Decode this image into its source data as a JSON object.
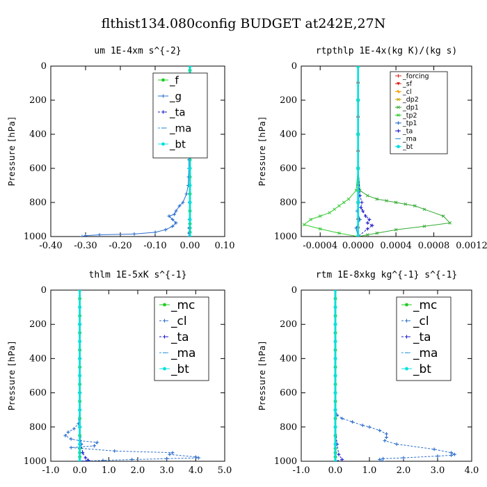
{
  "figure_title": "flthist134.080config  BUDGET at242E,27N",
  "colors": {
    "forcing": "#e0201b",
    "sf": "#e0201b",
    "cl": "#ff9900",
    "dp2": "#c8a800",
    "dp1": "#33aa33",
    "tp2": "#33cc33",
    "tp1": "#2a6dcc",
    "ta": "#1a1acc",
    "ma": "#3399dd",
    "bt": "#00e0e0",
    "mc": "#22cc22",
    "f": "#22cc22",
    "g": "#2a6dcc"
  },
  "chart_data": [
    {
      "type": "line",
      "title": "um   1E-4xm  s^{-2}",
      "ylabel": "Pressure [hPa]",
      "xlim": [
        -0.4,
        0.1
      ],
      "ylim": [
        1000,
        0
      ],
      "xticks": [
        "-0.40",
        "-0.30",
        "-0.20",
        "-0.10",
        "0.00",
        "0.10"
      ],
      "xtick_values": [
        -0.4,
        -0.3,
        -0.2,
        -0.1,
        0.0,
        0.1
      ],
      "yticks": [
        "0",
        "200",
        "400",
        "600",
        "800",
        "1000"
      ],
      "ytick_values": [
        0,
        200,
        400,
        600,
        800,
        1000
      ],
      "legend": {
        "position": "top-right",
        "entries": [
          "_f",
          "_g",
          "_ta",
          "_ma",
          "_bt"
        ]
      },
      "series": [
        {
          "name": "_f",
          "color": "#22cc22",
          "marker": "o",
          "dashed": false,
          "x": [
            0,
            0,
            0,
            0,
            0,
            0,
            0,
            0,
            0,
            0,
            0,
            0,
            0,
            0,
            0,
            0,
            0,
            0,
            0,
            0,
            0,
            0,
            0,
            0
          ],
          "y": [
            0,
            25,
            50,
            100,
            150,
            200,
            250,
            300,
            350,
            400,
            450,
            500,
            550,
            600,
            650,
            700,
            750,
            800,
            850,
            900,
            925,
            950,
            975,
            1000
          ]
        },
        {
          "name": "_g",
          "color": "#2a6dcc",
          "marker": "+",
          "dashed": false,
          "x": [
            -0.003,
            -0.002,
            -0.002,
            -0.003,
            -0.004,
            -0.003,
            -0.003,
            -0.002,
            -0.002,
            -0.002,
            -0.003,
            -0.003,
            -0.004,
            -0.005,
            -0.01,
            -0.02,
            -0.03,
            -0.04,
            -0.045,
            -0.06,
            -0.05,
            -0.04,
            -0.05,
            -0.07,
            -0.1,
            -0.16,
            -0.26,
            -0.3,
            -0.31
          ],
          "y": [
            100,
            150,
            175,
            200,
            250,
            300,
            350,
            400,
            450,
            500,
            550,
            600,
            650,
            700,
            750,
            800,
            820,
            850,
            870,
            880,
            900,
            920,
            940,
            960,
            975,
            985,
            990,
            995,
            1000
          ]
        },
        {
          "name": "_ta",
          "color": "#1a1acc",
          "marker": "+",
          "dashed": true,
          "x": [
            0,
            0,
            0,
            0,
            -0.001,
            -0.001,
            -0.002,
            -0.002,
            -0.003
          ],
          "y": [
            0,
            200,
            400,
            600,
            800,
            900,
            950,
            980,
            1000
          ]
        },
        {
          "name": "_ma",
          "color": "#3399dd",
          "marker": "-",
          "dashed": true,
          "x": [
            0,
            0,
            0,
            0,
            0,
            0,
            0
          ],
          "y": [
            0,
            200,
            400,
            600,
            800,
            900,
            1000
          ]
        },
        {
          "name": "_bt",
          "color": "#00e0e0",
          "marker": "o",
          "dashed": false,
          "x": [
            0,
            0,
            0,
            0,
            0,
            0,
            0,
            0,
            0,
            0,
            0
          ],
          "y": [
            0,
            100,
            200,
            300,
            400,
            500,
            600,
            700,
            800,
            900,
            1000
          ]
        }
      ]
    },
    {
      "type": "line",
      "title": "rtpthlp   1E-4x(kg K)/(kg s)",
      "ylabel": "Pressure [hPa]",
      "xlim": [
        -0.0006,
        0.0012
      ],
      "ylim": [
        1000,
        0
      ],
      "xticks": [
        "-0.0004",
        "0.0000",
        "0.0004",
        "0.0008",
        "0.0012"
      ],
      "xtick_values": [
        -0.0004,
        0.0,
        0.0004,
        0.0008,
        0.0012
      ],
      "yticks": [
        "0",
        "200",
        "400",
        "600",
        "800",
        "1000"
      ],
      "ytick_values": [
        0,
        200,
        400,
        600,
        800,
        1000
      ],
      "legend": {
        "position": "top-right",
        "entries": [
          "_forcing",
          "_sf",
          "_cl",
          "_dp2",
          "_dp1",
          "_tp2",
          "_tp1",
          "_ta",
          "_ma",
          "_bt"
        ]
      },
      "series": [
        {
          "name": "_forcing",
          "color": "#e0201b",
          "marker": "+",
          "dashed": false,
          "x": [
            0,
            0,
            0,
            0,
            0,
            0,
            0,
            0,
            0,
            0,
            0,
            0
          ],
          "y": [
            0,
            100,
            200,
            300,
            400,
            500,
            600,
            700,
            800,
            900,
            950,
            1000
          ]
        },
        {
          "name": "_sf",
          "color": "#e0201b",
          "marker": "v",
          "dashed": false,
          "x": [
            0,
            0,
            0,
            0,
            0,
            0,
            0,
            0,
            0,
            0,
            0,
            0
          ],
          "y": [
            0,
            100,
            200,
            300,
            400,
            500,
            600,
            700,
            800,
            900,
            950,
            1000
          ]
        },
        {
          "name": "_cl",
          "color": "#ff9900",
          "marker": "*",
          "dashed": false,
          "x": [
            0,
            0,
            0,
            0,
            0,
            0
          ],
          "y": [
            0,
            200,
            400,
            600,
            800,
            1000
          ]
        },
        {
          "name": "_dp2",
          "color": "#c8a800",
          "marker": "x",
          "dashed": false,
          "x": [
            0,
            0,
            0,
            0,
            0,
            0
          ],
          "y": [
            0,
            200,
            400,
            600,
            800,
            1000
          ]
        },
        {
          "name": "_dp1",
          "color": "#33aa33",
          "marker": "x",
          "dashed": false,
          "x": [
            0,
            0,
            0,
            0,
            2e-05,
            0.0001,
            0.0002,
            0.0003,
            0.0004,
            0.0005,
            0.0006,
            0.0007,
            0.0009,
            0.00097,
            0.0007,
            0.0004,
            0.0002,
            0.0001,
            0
          ],
          "y": [
            0,
            200,
            400,
            600,
            730,
            760,
            780,
            790,
            800,
            810,
            820,
            840,
            880,
            920,
            940,
            960,
            980,
            990,
            1000
          ]
        },
        {
          "name": "_tp2",
          "color": "#33cc33",
          "marker": "x",
          "dashed": false,
          "x": [
            0,
            0,
            0,
            0,
            -2e-05,
            -0.0001,
            -0.00015,
            -0.0002,
            -0.00025,
            -0.0003,
            -0.0004,
            -0.0005,
            -0.00057,
            -0.0004,
            -0.0002,
            0
          ],
          "y": [
            0,
            200,
            400,
            600,
            730,
            780,
            800,
            820,
            840,
            860,
            880,
            900,
            930,
            955,
            980,
            1000
          ]
        },
        {
          "name": "_tp1",
          "color": "#2a6dcc",
          "marker": "+",
          "dashed": false,
          "x": [
            0,
            0,
            0,
            0,
            1e-05,
            -1e-05,
            2e-05,
            -2e-05,
            0
          ],
          "y": [
            0,
            200,
            400,
            600,
            800,
            850,
            900,
            950,
            1000
          ]
        },
        {
          "name": "_ta",
          "color": "#1a1acc",
          "marker": "+",
          "dashed": true,
          "x": [
            0,
            0,
            0,
            0,
            2e-05,
            4e-05,
            3e-05,
            5e-05,
            8e-05,
            0.00012,
            0.0001,
            0.00015,
            0.0001,
            0
          ],
          "y": [
            0,
            200,
            400,
            600,
            760,
            800,
            830,
            850,
            880,
            900,
            920,
            935,
            955,
            1000
          ]
        },
        {
          "name": "_ma",
          "color": "#3399dd",
          "marker": "-",
          "dashed": true,
          "x": [
            0,
            0,
            0,
            0,
            0,
            0
          ],
          "y": [
            0,
            200,
            400,
            600,
            800,
            1000
          ]
        },
        {
          "name": "_bt",
          "color": "#00e0e0",
          "marker": "o",
          "dashed": false,
          "x": [
            0,
            0,
            0,
            0,
            0,
            0
          ],
          "y": [
            0,
            200,
            400,
            600,
            800,
            1000
          ]
        }
      ]
    },
    {
      "type": "line",
      "title": "thlm   1E-5xK  s^{-1}",
      "ylabel": "Pressure [hPa]",
      "xlim": [
        -1.0,
        5.0
      ],
      "ylim": [
        1000,
        0
      ],
      "xticks": [
        "-1.0",
        "0.0",
        "1.0",
        "2.0",
        "3.0",
        "4.0",
        "5.0"
      ],
      "xtick_values": [
        -1.0,
        0.0,
        1.0,
        2.0,
        3.0,
        4.0,
        5.0
      ],
      "yticks": [
        "0",
        "200",
        "400",
        "600",
        "800",
        "1000"
      ],
      "ytick_values": [
        0,
        200,
        400,
        600,
        800,
        1000
      ],
      "legend": {
        "position": "top-right",
        "entries": [
          "_mc",
          "_cl",
          "_ta",
          "_ma",
          "_bt"
        ]
      },
      "series": [
        {
          "name": "_mc",
          "color": "#22cc22",
          "marker": "o",
          "dashed": false,
          "x": [
            0,
            0,
            0,
            0,
            0,
            0,
            0,
            0,
            0,
            0,
            0,
            0,
            0,
            0,
            0,
            0,
            0,
            0,
            0,
            0,
            0,
            0,
            0
          ],
          "y": [
            0,
            50,
            100,
            150,
            200,
            250,
            300,
            350,
            400,
            450,
            500,
            550,
            600,
            650,
            700,
            750,
            800,
            850,
            900,
            925,
            950,
            975,
            1000
          ]
        },
        {
          "name": "_cl",
          "color": "#2a6dcc",
          "marker": "+",
          "dashed": true,
          "x": [
            0,
            0,
            0,
            0,
            0,
            -0.05,
            -0.2,
            -0.4,
            -0.5,
            -0.3,
            0.0,
            0.6,
            0.5,
            -0.3,
            1.2,
            3.2,
            3.1,
            4.0,
            4.1,
            3.0,
            1.8,
            0.8,
            0.0
          ],
          "y": [
            0,
            200,
            400,
            600,
            700,
            780,
            810,
            830,
            850,
            870,
            880,
            890,
            910,
            920,
            940,
            950,
            960,
            975,
            980,
            985,
            990,
            995,
            1000
          ]
        },
        {
          "name": "_ta",
          "color": "#1a1acc",
          "marker": "+",
          "dashed": true,
          "x": [
            0,
            0,
            0,
            0,
            0,
            0.05,
            0.1,
            0.2,
            0.3,
            0
          ],
          "y": [
            0,
            200,
            400,
            600,
            800,
            900,
            950,
            980,
            995,
            1000
          ]
        },
        {
          "name": "_ma",
          "color": "#3399dd",
          "marker": "-",
          "dashed": true,
          "x": [
            0,
            0,
            0,
            0,
            0,
            0
          ],
          "y": [
            0,
            200,
            400,
            600,
            800,
            1000
          ]
        },
        {
          "name": "_bt",
          "color": "#00e0e0",
          "marker": "o",
          "dashed": false,
          "x": [
            0,
            0,
            0,
            0,
            0,
            0,
            0,
            0,
            0,
            0,
            0
          ],
          "y": [
            0,
            100,
            200,
            300,
            400,
            500,
            600,
            700,
            800,
            900,
            1000
          ]
        }
      ]
    },
    {
      "type": "line",
      "title": "rtm   1E-8xkg  kg^{-1}  s^{-1}",
      "ylabel": "Pressure [hPa]",
      "xlim": [
        -1.0,
        4.0
      ],
      "ylim": [
        1000,
        0
      ],
      "xticks": [
        "-1.0",
        "0.0",
        "1.0",
        "2.0",
        "3.0",
        "4.0"
      ],
      "xtick_values": [
        -1.0,
        0.0,
        1.0,
        2.0,
        3.0,
        4.0
      ],
      "yticks": [
        "0",
        "200",
        "400",
        "600",
        "800",
        "1000"
      ],
      "ytick_values": [
        0,
        200,
        400,
        600,
        800,
        1000
      ],
      "legend": {
        "position": "top-right",
        "entries": [
          "_mc",
          "_cl",
          "_ta",
          "_ma",
          "_bt"
        ]
      },
      "series": [
        {
          "name": "_mc",
          "color": "#22cc22",
          "marker": "o",
          "dashed": false,
          "x": [
            0,
            0,
            0,
            0,
            0,
            0,
            0,
            0,
            0,
            0,
            0,
            0,
            0,
            0,
            0,
            0,
            0,
            0,
            0,
            0,
            0,
            0,
            0
          ],
          "y": [
            0,
            50,
            100,
            150,
            200,
            250,
            300,
            350,
            400,
            450,
            500,
            550,
            600,
            650,
            700,
            750,
            800,
            850,
            900,
            925,
            950,
            975,
            1000
          ]
        },
        {
          "name": "_cl",
          "color": "#2a6dcc",
          "marker": "+",
          "dashed": true,
          "x": [
            0,
            0,
            0,
            0,
            0,
            0.05,
            0.2,
            0.5,
            0.8,
            1.0,
            1.3,
            1.5,
            1.5,
            1.45,
            1.8,
            2.9,
            3.4,
            3.5,
            3.4,
            3.0,
            2.0,
            1.4,
            1.3,
            1.4
          ],
          "y": [
            0,
            200,
            400,
            600,
            700,
            730,
            750,
            770,
            790,
            800,
            820,
            840,
            860,
            880,
            900,
            930,
            950,
            960,
            965,
            970,
            980,
            985,
            990,
            1000
          ]
        },
        {
          "name": "_ta",
          "color": "#1a1acc",
          "marker": "+",
          "dashed": true,
          "x": [
            0,
            0,
            0,
            0,
            0,
            0.05,
            0.1,
            0.2,
            0
          ],
          "y": [
            0,
            200,
            400,
            600,
            800,
            900,
            960,
            990,
            1000
          ]
        },
        {
          "name": "_ma",
          "color": "#3399dd",
          "marker": "-",
          "dashed": true,
          "x": [
            0,
            0,
            0,
            0,
            0,
            0
          ],
          "y": [
            0,
            200,
            400,
            600,
            800,
            1000
          ]
        },
        {
          "name": "_bt",
          "color": "#00e0e0",
          "marker": "o",
          "dashed": false,
          "x": [
            0,
            0,
            0,
            0,
            0,
            0,
            0,
            0,
            0,
            0,
            0
          ],
          "y": [
            0,
            100,
            200,
            300,
            400,
            500,
            600,
            700,
            800,
            900,
            1000
          ]
        }
      ]
    }
  ]
}
